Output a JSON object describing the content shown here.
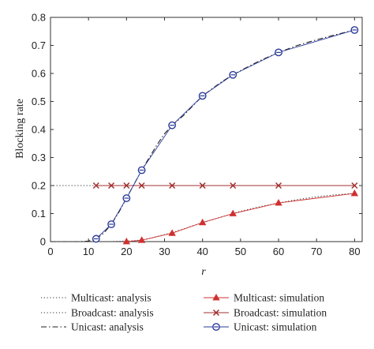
{
  "chart_data": {
    "type": "line",
    "title": "",
    "xlabel": "r",
    "ylabel": "Blocking rate",
    "xlim": [
      0,
      82
    ],
    "ylim": [
      0,
      0.8
    ],
    "xticks": [
      0,
      10,
      20,
      30,
      40,
      50,
      60,
      70,
      80
    ],
    "yticks": [
      0,
      0.1,
      0.2,
      0.3,
      0.4,
      0.5,
      0.6,
      0.7,
      0.8
    ],
    "xtick_labels": [
      "0",
      "10",
      "20",
      "30",
      "40",
      "50",
      "60",
      "70",
      "80"
    ],
    "ytick_labels": [
      "0",
      "0.1",
      "0.2",
      "0.3",
      "0.4",
      "0.5",
      "0.6",
      "0.7",
      "0.8"
    ],
    "grid": false,
    "legend_position": "below the plot, two columns",
    "series": [
      {
        "name": "Multicast: analysis",
        "style": "dotted",
        "color": "#333333",
        "x": [
          0,
          16,
          18,
          20,
          22,
          24,
          26,
          28,
          30,
          32,
          35,
          40,
          45,
          48,
          50,
          55,
          60,
          65,
          70,
          75,
          80
        ],
        "y": [
          0,
          0,
          0.001,
          0.002,
          0.003,
          0.006,
          0.011,
          0.018,
          0.025,
          0.032,
          0.045,
          0.068,
          0.088,
          0.1,
          0.108,
          0.124,
          0.138,
          0.15,
          0.16,
          0.167,
          0.172
        ]
      },
      {
        "name": "Multicast: simulation",
        "style": "solid-marker-triangle",
        "color": "#d03030",
        "x": [
          20,
          24,
          32,
          40,
          48,
          60,
          80
        ],
        "y": [
          0,
          0.005,
          0.03,
          0.068,
          0.1,
          0.138,
          0.172
        ]
      },
      {
        "name": "Broadcast: analysis",
        "style": "dotted",
        "color": "#333333",
        "x": [
          0,
          80
        ],
        "y": [
          0.2,
          0.2
        ]
      },
      {
        "name": "Broadcast: simulation",
        "style": "solid-marker-x",
        "color": "#a03030",
        "x": [
          12,
          16,
          20,
          24,
          32,
          40,
          48,
          60,
          80
        ],
        "y": [
          0.2,
          0.2,
          0.2,
          0.2,
          0.2,
          0.2,
          0.2,
          0.2,
          0.2
        ]
      },
      {
        "name": "Unicast: analysis",
        "style": "dashdot",
        "color": "#222222",
        "x": [
          0,
          8,
          10,
          12,
          14,
          16,
          18,
          20,
          22,
          24,
          26,
          28,
          30,
          32,
          35,
          40,
          45,
          48,
          50,
          55,
          60,
          65,
          70,
          75,
          80
        ],
        "y": [
          0,
          0,
          0.002,
          0.01,
          0.03,
          0.062,
          0.105,
          0.155,
          0.205,
          0.255,
          0.3,
          0.345,
          0.385,
          0.415,
          0.45,
          0.52,
          0.57,
          0.595,
          0.61,
          0.645,
          0.675,
          0.7,
          0.72,
          0.738,
          0.755
        ]
      },
      {
        "name": "Unicast: simulation",
        "style": "solid-marker-circle",
        "color": "#2a3a9a",
        "x": [
          12,
          16,
          20,
          24,
          32,
          40,
          48,
          60,
          80
        ],
        "y": [
          0.01,
          0.062,
          0.155,
          0.255,
          0.415,
          0.52,
          0.595,
          0.675,
          0.755
        ]
      }
    ]
  }
}
